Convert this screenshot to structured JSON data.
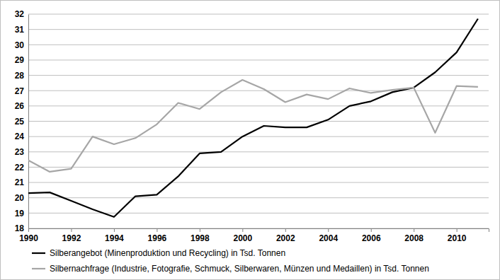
{
  "chart_data": {
    "type": "line",
    "x": [
      1990,
      1991,
      1992,
      1993,
      1994,
      1995,
      1996,
      1997,
      1998,
      1999,
      2000,
      2001,
      2002,
      2003,
      2004,
      2005,
      2006,
      2007,
      2008,
      2009,
      2010,
      2011
    ],
    "series": [
      {
        "name": "Silberangebot (Minenproduktion und Recycling) in Tsd. Tonnen",
        "color": "#000000",
        "values": [
          20.3,
          20.35,
          19.8,
          19.25,
          18.75,
          20.1,
          20.2,
          21.4,
          22.9,
          23.0,
          24.0,
          24.7,
          24.6,
          24.6,
          25.1,
          26.0,
          26.3,
          26.9,
          27.2,
          28.2,
          29.5,
          31.7
        ]
      },
      {
        "name": "Silbernachfrage (Industrie, Fotografie, Schmuck, Silberwaren, Münzen und Medaillen) in Tsd. Tonnen",
        "color": "#a6a6a6",
        "values": [
          22.45,
          21.7,
          21.9,
          24.0,
          23.5,
          23.9,
          24.8,
          26.2,
          25.8,
          26.9,
          27.7,
          27.1,
          26.25,
          26.75,
          26.45,
          27.15,
          26.85,
          27.05,
          27.2,
          24.25,
          27.3,
          27.25
        ]
      }
    ],
    "xlim": [
      1990,
      2011.5
    ],
    "xticks": [
      1990,
      1992,
      1994,
      1996,
      1998,
      2000,
      2002,
      2004,
      2006,
      2008,
      2010
    ],
    "ylim": [
      18,
      32
    ],
    "yticks": [
      18,
      19,
      20,
      21,
      22,
      23,
      24,
      25,
      26,
      27,
      28,
      29,
      30,
      31,
      32
    ],
    "grid": true,
    "legend": "bottom"
  }
}
